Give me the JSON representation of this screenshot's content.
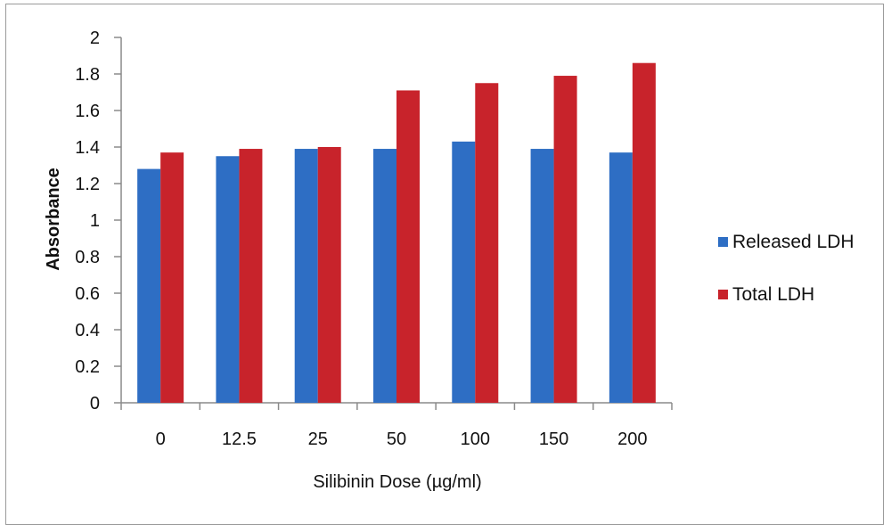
{
  "chart_data": {
    "type": "bar",
    "xlabel": "Silibinin Dose (µg/ml)",
    "ylabel": "Absorbance",
    "categories": [
      "0",
      "12.5",
      "25",
      "50",
      "100",
      "150",
      "200"
    ],
    "series": [
      {
        "name": "Released LDH",
        "color": "#2e6ec4",
        "values": [
          1.28,
          1.35,
          1.39,
          1.39,
          1.43,
          1.39,
          1.37
        ]
      },
      {
        "name": "Total LDH",
        "color": "#c8232b",
        "values": [
          1.37,
          1.39,
          1.4,
          1.71,
          1.75,
          1.79,
          1.86
        ]
      }
    ],
    "ylim": [
      0,
      2
    ],
    "yticks": [
      "0",
      "0.2",
      "0.4",
      "0.6",
      "0.8",
      "1",
      "1.2",
      "1.4",
      "1.6",
      "1.8",
      "2"
    ],
    "grid": false,
    "legend_position": "right"
  }
}
